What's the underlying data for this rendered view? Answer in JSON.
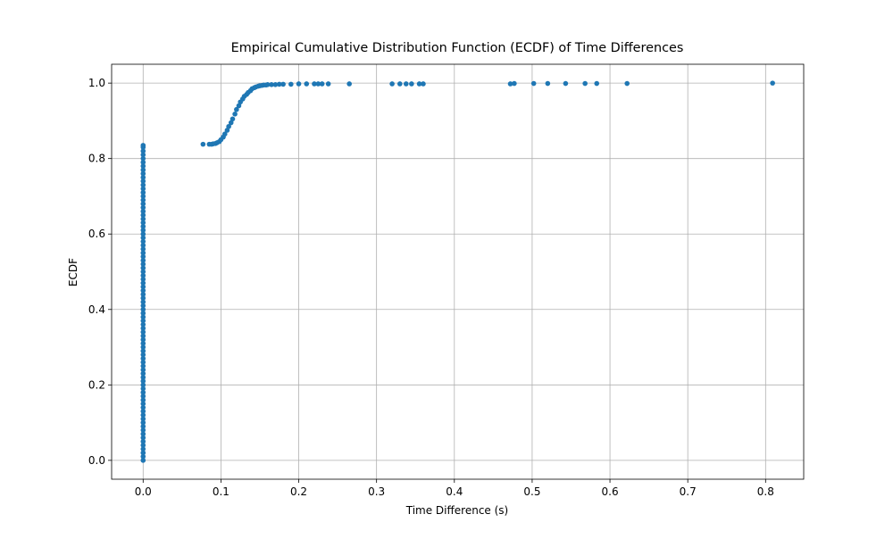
{
  "chart_data": {
    "type": "scatter",
    "title": "Empirical Cumulative Distribution Function (ECDF) of Time Differences",
    "x_label": "Time Difference (s)",
    "y_label": "ECDF",
    "color": "#1f77b4",
    "grid": true,
    "xlim": [
      -0.0405,
      0.849
    ],
    "ylim": [
      -0.05,
      1.05
    ],
    "xticks": [
      {
        "value": 0,
        "label": "0.0"
      },
      0.1,
      0.2,
      0.3,
      0.4,
      0.5,
      0.6,
      0.7,
      0.8
    ],
    "yticks": [
      {
        "value": 0,
        "label": "0.0"
      },
      0.2,
      0.4,
      0.6,
      0.8,
      {
        "value": 1,
        "label": "1.0"
      }
    ],
    "x": [
      0,
      0,
      0,
      0,
      0,
      0,
      0,
      0,
      0,
      0,
      0,
      0,
      0,
      0,
      0,
      0,
      0,
      0,
      0,
      0,
      0,
      0,
      0,
      0,
      0,
      0,
      0,
      0,
      0,
      0,
      0,
      0,
      0,
      0,
      0,
      0,
      0,
      0,
      0,
      0,
      0,
      0,
      0,
      0,
      0,
      0,
      0,
      0,
      0,
      0,
      0,
      0,
      0,
      0,
      0,
      0,
      0,
      0,
      0,
      0,
      0,
      0,
      0,
      0,
      0,
      0,
      0,
      0,
      0,
      0,
      0,
      0,
      0,
      0,
      0,
      0,
      0,
      0,
      0,
      0,
      0,
      0,
      0,
      0,
      0,
      0.077,
      0.085,
      0.088,
      0.09,
      0.093,
      0.095,
      0.098,
      0.1,
      0.103,
      0.105,
      0.108,
      0.11,
      0.113,
      0.115,
      0.118,
      0.12,
      0.123,
      0.125,
      0.128,
      0.13,
      0.133,
      0.135,
      0.138,
      0.14,
      0.143,
      0.145,
      0.148,
      0.15,
      0.153,
      0.155,
      0.158,
      0.16,
      0.165,
      0.17,
      0.175,
      0.18,
      0.19,
      0.2,
      0.21,
      0.22,
      0.225,
      0.23,
      0.238,
      0.265,
      0.32,
      0.33,
      0.338,
      0.345,
      0.355,
      0.36,
      0.472,
      0.477,
      0.502,
      0.52,
      0.543,
      0.568,
      0.583,
      0.622,
      0.809
    ],
    "values": [
      0,
      0.01,
      0.02,
      0.03,
      0.04,
      0.05,
      0.06,
      0.07,
      0.08,
      0.09,
      0.1,
      0.11,
      0.12,
      0.13,
      0.14,
      0.15,
      0.16,
      0.17,
      0.18,
      0.19,
      0.2,
      0.21,
      0.22,
      0.23,
      0.24,
      0.25,
      0.26,
      0.27,
      0.28,
      0.29,
      0.3,
      0.31,
      0.32,
      0.33,
      0.34,
      0.35,
      0.36,
      0.37,
      0.38,
      0.39,
      0.4,
      0.41,
      0.42,
      0.43,
      0.44,
      0.45,
      0.46,
      0.47,
      0.48,
      0.49,
      0.5,
      0.51,
      0.52,
      0.53,
      0.54,
      0.55,
      0.56,
      0.57,
      0.58,
      0.59,
      0.6,
      0.61,
      0.62,
      0.63,
      0.64,
      0.65,
      0.66,
      0.67,
      0.68,
      0.69,
      0.7,
      0.71,
      0.72,
      0.73,
      0.74,
      0.75,
      0.76,
      0.77,
      0.78,
      0.79,
      0.8,
      0.81,
      0.82,
      0.83,
      0.835,
      0.838,
      0.838,
      0.838,
      0.839,
      0.84,
      0.842,
      0.845,
      0.85,
      0.857,
      0.865,
      0.875,
      0.885,
      0.895,
      0.905,
      0.918,
      0.93,
      0.94,
      0.95,
      0.958,
      0.965,
      0.97,
      0.975,
      0.98,
      0.985,
      0.988,
      0.99,
      0.992,
      0.993,
      0.994,
      0.995,
      0.995,
      0.996,
      0.996,
      0.996,
      0.997,
      0.997,
      0.997,
      0.998,
      0.998,
      0.998,
      0.998,
      0.998,
      0.998,
      0.998,
      0.998,
      0.998,
      0.998,
      0.998,
      0.998,
      0.998,
      0.998,
      0.999,
      0.999,
      0.999,
      0.999,
      0.999,
      0.999,
      0.999,
      1.0
    ]
  }
}
